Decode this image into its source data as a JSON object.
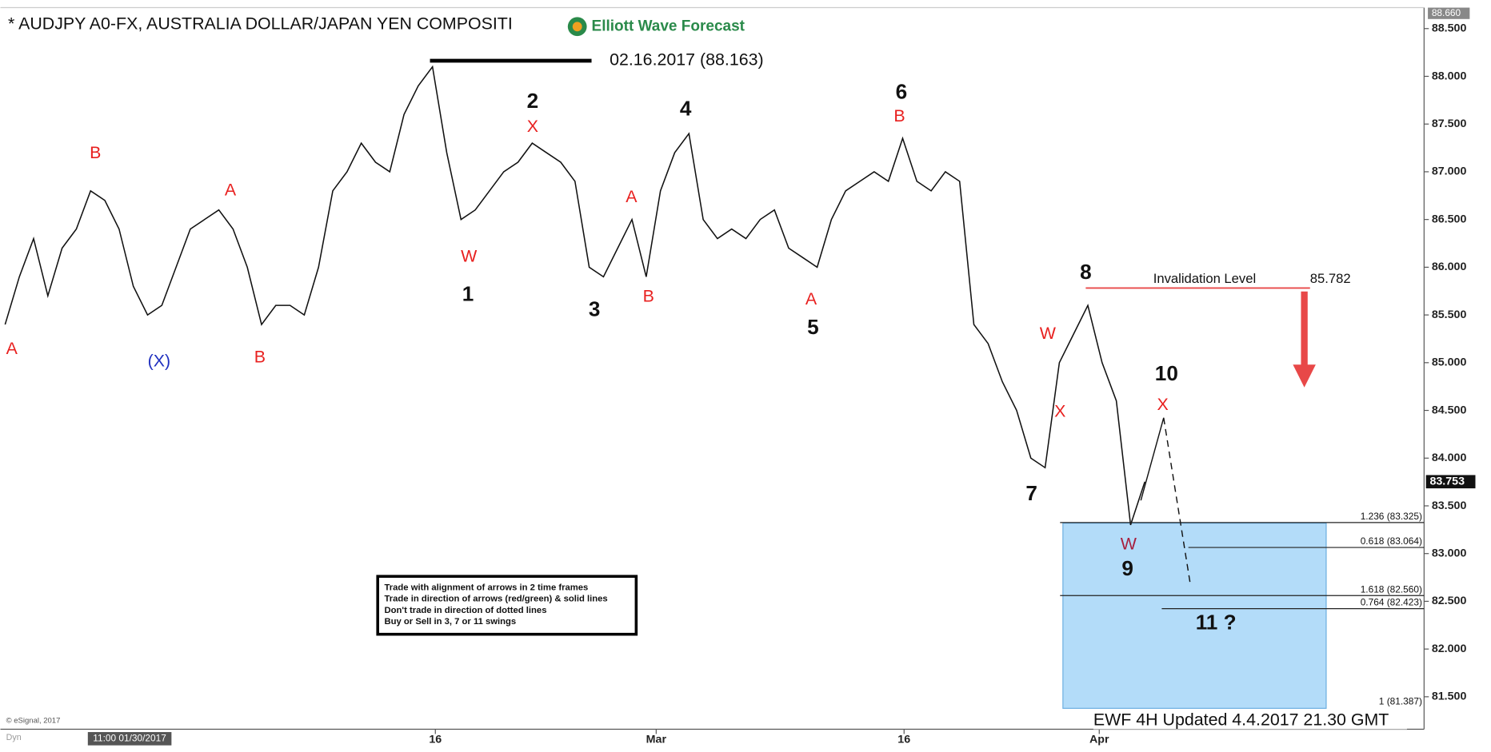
{
  "chart_data": {
    "type": "line",
    "title": "* AUDJPY A0-FX, AUSTRALIA DOLLAR/JAPAN YEN COMPOSITI",
    "logo": "Elliott Wave Forecast",
    "footer": "EWF 4H Updated 4.4.2017 21.30 GMT",
    "copyright": "© eSignal, 2017",
    "corner_label": "Dyn",
    "cursor_label": "11:00 01/30/2017",
    "series": [
      {
        "name": "AUDJPY",
        "color": "#111111",
        "values": [
          85.4,
          85.9,
          86.3,
          85.7,
          86.2,
          86.4,
          86.8,
          86.7,
          86.4,
          85.8,
          85.5,
          85.6,
          86.0,
          86.4,
          86.5,
          86.6,
          86.4,
          86.0,
          85.4,
          85.6,
          85.6,
          85.5,
          86.0,
          86.8,
          87.0,
          87.3,
          87.1,
          87.0,
          87.6,
          87.9,
          88.1,
          87.2,
          86.5,
          86.6,
          86.8,
          87.0,
          87.1,
          87.3,
          87.2,
          87.1,
          86.9,
          86.0,
          85.9,
          86.2,
          86.5,
          85.9,
          86.8,
          87.2,
          87.4,
          86.5,
          86.3,
          86.4,
          86.3,
          86.5,
          86.6,
          86.2,
          86.1,
          86.0,
          86.5,
          86.8,
          86.9,
          87.0,
          86.9,
          87.35,
          86.9,
          86.8,
          87.0,
          86.9,
          85.4,
          85.2,
          84.8,
          84.5,
          84.0,
          83.9,
          85.0,
          85.3,
          85.6,
          85.0,
          84.6,
          83.3,
          83.753
        ]
      }
    ],
    "xlim": [
      -0.33,
      99.6
    ],
    "xticks": [
      {
        "value": 30.2,
        "label": "16"
      },
      {
        "value": 45.7,
        "label": "Mar"
      },
      {
        "value": 63.1,
        "label": "16"
      },
      {
        "value": 76.8,
        "label": "Apr"
      }
    ],
    "ylim": [
      81.16,
      88.72
    ],
    "yticks": [
      {
        "value": 81.5,
        "label": "81.500"
      },
      {
        "value": 82,
        "label": "82.000"
      },
      {
        "value": 82.5,
        "label": "82.500"
      },
      {
        "value": 83,
        "label": "83.000"
      },
      {
        "value": 83.5,
        "label": "83.500"
      },
      {
        "value": 84,
        "label": "84.000"
      },
      {
        "value": 84.5,
        "label": "84.500"
      },
      {
        "value": 85,
        "label": "85.000"
      },
      {
        "value": 85.5,
        "label": "85.500"
      },
      {
        "value": 86,
        "label": "86.000"
      },
      {
        "value": 86.5,
        "label": "86.500"
      },
      {
        "value": 87,
        "label": "87.000"
      },
      {
        "value": 87.5,
        "label": "87.500"
      },
      {
        "value": 88,
        "label": "88.000"
      },
      {
        "value": 88.5,
        "label": "88.500"
      }
    ],
    "y_top_marker": {
      "value": 88.66,
      "label": "88.660"
    },
    "high_marker": {
      "value": 88.163,
      "label": "02.16.2017 (88.163)"
    },
    "invalidation": {
      "value": 85.782,
      "label": "Invalidation Level",
      "value_label": "85.782"
    },
    "fib_levels": [
      {
        "value": 83.325,
        "label": "1.236 (83.325)"
      },
      {
        "value": 83.064,
        "label": "0.618 (83.064)"
      },
      {
        "value": 82.56,
        "label": "1.618 (82.560)"
      },
      {
        "value": 82.423,
        "label": "0.764 (82.423)"
      },
      {
        "value": 81.387,
        "label": "1 (81.387)"
      }
    ],
    "annotations": [
      {
        "text": "A",
        "color": "#e8201f"
      },
      {
        "text": "B",
        "color": "#e8201f"
      },
      {
        "text": "(X)",
        "color": "#1f2fbf"
      },
      {
        "text": "A",
        "color": "#e8201f"
      },
      {
        "text": "B",
        "color": "#e8201f"
      },
      {
        "text": "W",
        "color": "#e8201f"
      },
      {
        "text": "1",
        "color": "#111111"
      },
      {
        "text": "X",
        "color": "#e8201f"
      },
      {
        "text": "2",
        "color": "#111111"
      },
      {
        "text": "3",
        "color": "#111111"
      },
      {
        "text": "A",
        "color": "#e8201f"
      },
      {
        "text": "B",
        "color": "#e8201f"
      },
      {
        "text": "4",
        "color": "#111111"
      },
      {
        "text": "A",
        "color": "#e8201f"
      },
      {
        "text": "5",
        "color": "#111111"
      },
      {
        "text": "B",
        "color": "#e8201f"
      },
      {
        "text": "6",
        "color": "#111111"
      },
      {
        "text": "7",
        "color": "#111111"
      },
      {
        "text": "W",
        "color": "#e8201f"
      },
      {
        "text": "X",
        "color": "#e8201f"
      },
      {
        "text": "8",
        "color": "#111111"
      },
      {
        "text": "10",
        "color": "#111111"
      },
      {
        "text": "X",
        "color": "#e8201f"
      },
      {
        "text": "W",
        "color": "#a8203f"
      },
      {
        "text": "9",
        "color": "#111111"
      },
      {
        "text": "11 ?",
        "color": "#111111"
      }
    ],
    "rules_box": [
      "Trade with alignment of arrows in 2 time frames",
      "Trade in direction of arrows (red/green) & solid lines",
      "Don't trade in direction of dotted lines",
      "Buy or Sell in 3, 7 or 11 swings"
    ]
  }
}
